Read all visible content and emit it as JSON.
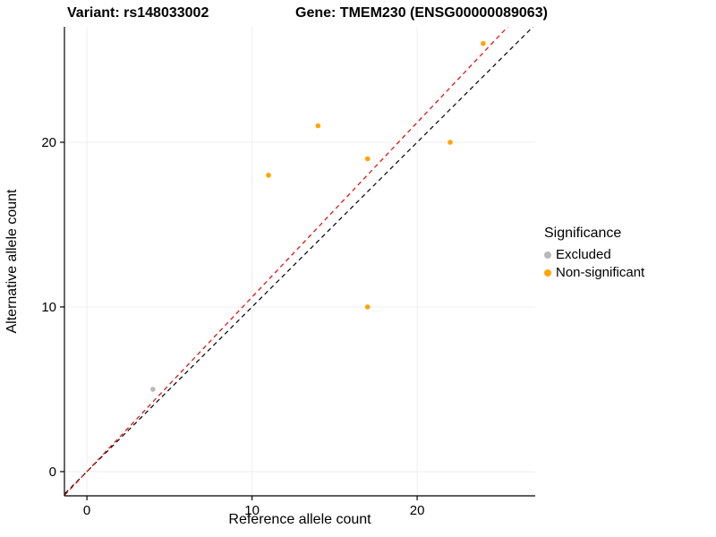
{
  "chart_data": {
    "type": "scatter",
    "title_left": "Variant: rs148033002",
    "title_right": "Gene: TMEM230 (ENSG00000089063)",
    "xlabel": "Reference allele count",
    "ylabel": "Alternative allele count",
    "xlim": [
      -1.36,
      27.15
    ],
    "ylim": [
      -1.47,
      27.01
    ],
    "xticks": [
      0,
      10,
      20
    ],
    "yticks": [
      0,
      10,
      20
    ],
    "grid": true,
    "legend": {
      "title": "Significance",
      "position": "right",
      "items": [
        {
          "label": "Excluded",
          "color": "#b9b9b9"
        },
        {
          "label": "Non-significant",
          "color": "#FFA500"
        }
      ]
    },
    "series": [
      {
        "name": "Excluded",
        "color": "#b9b9b9",
        "points": [
          {
            "x": 4,
            "y": 5
          }
        ]
      },
      {
        "name": "Non-significant",
        "color": "#FFA500",
        "points": [
          {
            "x": 11,
            "y": 18
          },
          {
            "x": 14,
            "y": 21
          },
          {
            "x": 17,
            "y": 19
          },
          {
            "x": 17,
            "y": 10
          },
          {
            "x": 22,
            "y": 20
          },
          {
            "x": 24,
            "y": 26
          }
        ]
      }
    ],
    "lines": [
      {
        "name": "identity",
        "slope": 1.0,
        "intercept": 0,
        "color": "#000000",
        "dash": "5 4"
      },
      {
        "name": "fit",
        "slope": 1.06,
        "intercept": 0,
        "color": "#e60000",
        "dash": "5 4"
      }
    ],
    "colors": {
      "background": "#ffffff",
      "grid": "#efefef",
      "axis": "#000000",
      "tick_text": "#000000"
    }
  }
}
